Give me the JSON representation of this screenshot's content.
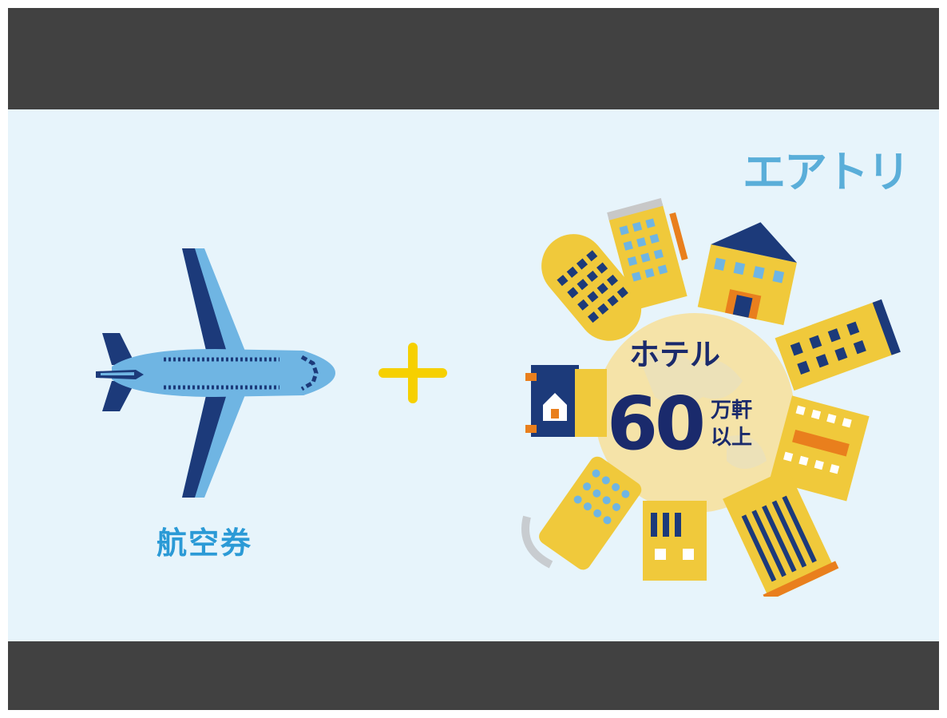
{
  "brand": {
    "logo_text": "エアトリ"
  },
  "plane": {
    "label": "航空券"
  },
  "hotel": {
    "word": "ホテル",
    "count": "60",
    "unit_line1": "万軒",
    "unit_line2": "以上"
  },
  "colors": {
    "letterbox": "#414141",
    "background": "#e7f4fb",
    "logo": "#5aaed9",
    "plane_body": "#6fb5e3",
    "plane_dark": "#1c3a7a",
    "plus": "#f6d000",
    "building_yellow": "#f0c93b",
    "globe": "#f5e3a8",
    "navy_text": "#1a2a6c"
  },
  "icons": [
    "airplane-icon",
    "plus-icon",
    "hotel-globe-illustration"
  ]
}
